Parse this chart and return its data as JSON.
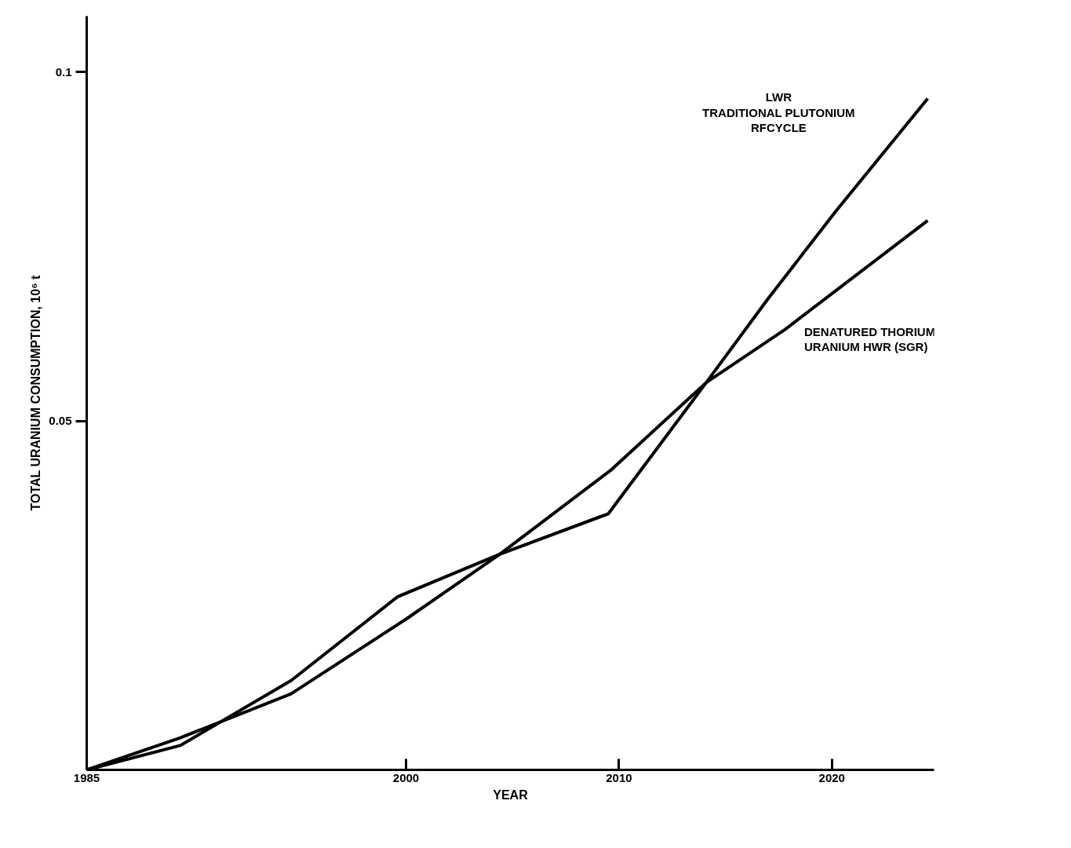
{
  "chart_data": {
    "type": "line",
    "xlabel": "YEAR",
    "ylabel": "TOTAL URANIUM CONSUMPTION, 10⁶ t",
    "xlim": [
      1985,
      2024.8
    ],
    "ylim": [
      0,
      0.108
    ],
    "xticks": [
      {
        "value": 1985,
        "label": "1985"
      },
      2000,
      2010,
      2020
    ],
    "yticks": [
      0.05,
      0.1
    ],
    "grid": false,
    "marker": "none",
    "line_style": "solid",
    "series": [
      {
        "name": "LWR\nTRADITIONAL PLUTONIUM\nRFCYCLE",
        "color": "#000000",
        "x": [
          1985,
          1989.4,
          1994.6,
          1999.6,
          2004.4,
          2009.5,
          2014.1,
          2017,
          2020.2,
          2024.5
        ],
        "values": [
          0,
          0.0035,
          0.0128,
          0.0248,
          0.0309,
          0.0367,
          0.0555,
          0.0675,
          0.0801,
          0.0962
        ]
      },
      {
        "name": "DENATURED THORIUM\nURANIUM HWR (SGR)",
        "color": "#000000",
        "x": [
          1985,
          1989.4,
          1994.6,
          2000,
          2004.4,
          2009.6,
          2014.1,
          2017.8,
          2024.5
        ],
        "values": [
          0,
          0.0046,
          0.0109,
          0.0216,
          0.0309,
          0.0429,
          0.0555,
          0.0631,
          0.0787
        ]
      }
    ]
  }
}
